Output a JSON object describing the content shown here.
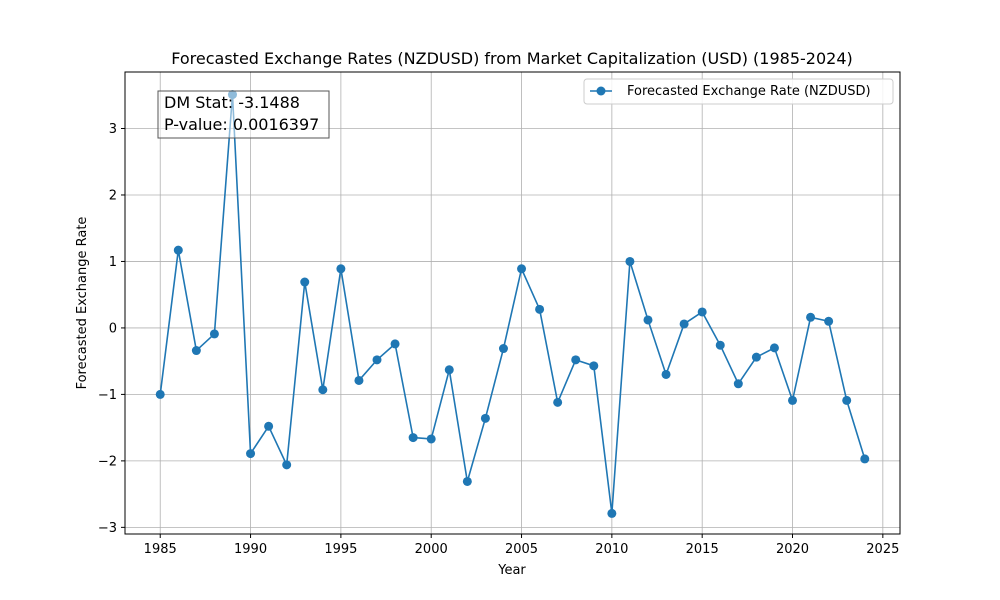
{
  "chart_data": {
    "type": "line",
    "title": "Forecasted Exchange Rates (NZDUSD) from Market Capitalization (USD) (1985-2024)",
    "xlabel": "Year",
    "ylabel": "Forecasted Exchange Rate",
    "xlim": [
      1983.05,
      2025.95
    ],
    "ylim": [
      -3.1,
      3.85
    ],
    "x_ticks": [
      1985,
      1990,
      1995,
      2000,
      2005,
      2010,
      2015,
      2020,
      2025
    ],
    "x_tick_labels": [
      "1985",
      "1990",
      "1995",
      "2000",
      "2005",
      "2010",
      "2015",
      "2020",
      "2025"
    ],
    "y_ticks": [
      -3,
      -2,
      -1,
      0,
      1,
      2,
      3
    ],
    "y_tick_labels": [
      "−3",
      "−2",
      "−1",
      "0",
      "1",
      "2",
      "3"
    ],
    "grid": true,
    "legend_position": "top-right",
    "line_color": "#1f77b4",
    "series": [
      {
        "name": "Forecasted Exchange Rate (NZDUSD)",
        "x": [
          1985,
          1986,
          1987,
          1988,
          1989,
          1990,
          1991,
          1992,
          1993,
          1994,
          1995,
          1996,
          1997,
          1998,
          1999,
          2000,
          2001,
          2002,
          2003,
          2004,
          2005,
          2006,
          2007,
          2008,
          2009,
          2010,
          2011,
          2012,
          2013,
          2014,
          2015,
          2016,
          2017,
          2018,
          2019,
          2020,
          2021,
          2022,
          2023,
          2024
        ],
        "values": [
          -1.0,
          1.17,
          -0.34,
          -0.09,
          3.51,
          -1.89,
          -1.48,
          -2.06,
          0.69,
          -0.93,
          0.89,
          -0.79,
          -0.48,
          -0.24,
          -1.65,
          -1.67,
          -0.63,
          -2.31,
          -1.36,
          -0.31,
          0.89,
          0.28,
          -1.12,
          -0.48,
          -0.57,
          -2.79,
          1.0,
          0.12,
          -0.7,
          0.06,
          0.24,
          -0.26,
          -0.84,
          -0.44,
          -0.3,
          -1.09,
          0.16,
          0.1,
          -1.09,
          -1.97
        ]
      }
    ],
    "annotation": {
      "dm_stat": "DM Stat: -3.1488",
      "p_value": "P-value: 0.0016397"
    }
  }
}
